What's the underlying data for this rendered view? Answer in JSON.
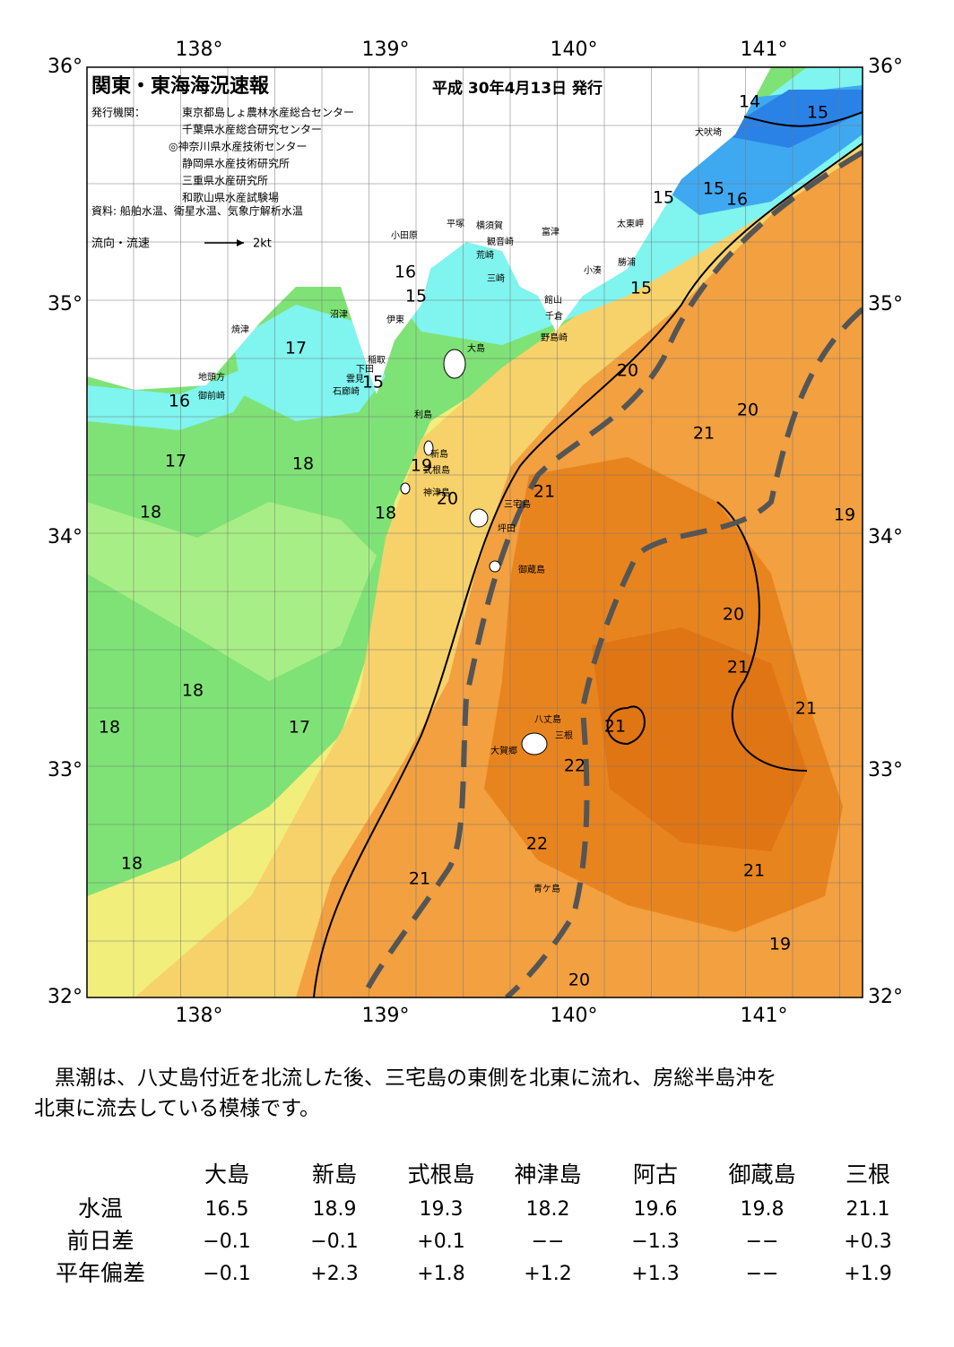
{
  "header": {
    "title": "関東・東海海況速報",
    "date": "平成 30年4月13日 発行",
    "issuer_label": "発行機関：",
    "issuers": [
      "東京都島しょ農林水産総合センター",
      "千葉県水産総合研究センター",
      "◎神奈川県水産技術センター",
      "静岡県水産技術研究所",
      "三重県水産研究所",
      "和歌山県水産試験場"
    ],
    "source": "資料: 船舶水温、衛星水温、気象庁解析水温",
    "legend": "流向・流速",
    "legend_scale": "2kt"
  },
  "axes": {
    "lon_labels": [
      "138°",
      "139°",
      "140°",
      "141°"
    ],
    "lat_labels": [
      "36°",
      "35°",
      "34°",
      "33°",
      "32°"
    ]
  },
  "places": [
    "犬吠埼",
    "太東岬",
    "勝浦",
    "小湊",
    "富津",
    "館山",
    "千倉",
    "野島崎",
    "横須賀",
    "観音崎",
    "荒崎",
    "三崎",
    "平塚",
    "小田原",
    "沼津",
    "伊東",
    "稲取",
    "下田",
    "雲見",
    "石廊崎",
    "焼津",
    "地頭方",
    "御前崎",
    "大島",
    "利島",
    "新島",
    "式根島",
    "神津島",
    "三宅島",
    "坪田",
    "御蔵島",
    "八丈島",
    "三根",
    "大賀郷",
    "青ケ島"
  ],
  "isotherms": [
    14,
    15,
    15,
    15,
    16,
    16,
    15,
    15,
    17,
    15,
    16,
    17,
    18,
    18,
    18,
    20,
    20,
    21,
    21,
    20,
    19,
    19,
    20,
    21,
    21,
    21,
    22,
    22,
    21,
    21,
    19,
    20,
    18,
    18,
    17,
    18
  ],
  "paragraph": [
    "　黒潮は、八丈島付近を北流した後、三宅島の東側を北東に流れ、房総半島沖を",
    "北東に流去している模様です。"
  ],
  "table": {
    "columns": [
      "大島",
      "新島",
      "式根島",
      "神津島",
      "阿古",
      "御蔵島",
      "三根"
    ],
    "rows": [
      {
        "label": "水温",
        "cells": [
          "16.5",
          "18.9",
          "19.3",
          "18.2",
          "19.6",
          "19.8",
          "21.1"
        ]
      },
      {
        "label": "前日差",
        "cells": [
          "−0.1",
          "−0.1",
          "+0.1",
          "−−",
          "−1.3",
          "−−",
          "+0.3"
        ]
      },
      {
        "label": "平年偏差",
        "cells": [
          "−0.1",
          "+2.3",
          "+1.8",
          "+1.2",
          "+1.3",
          "−−",
          "+1.9"
        ]
      }
    ]
  }
}
